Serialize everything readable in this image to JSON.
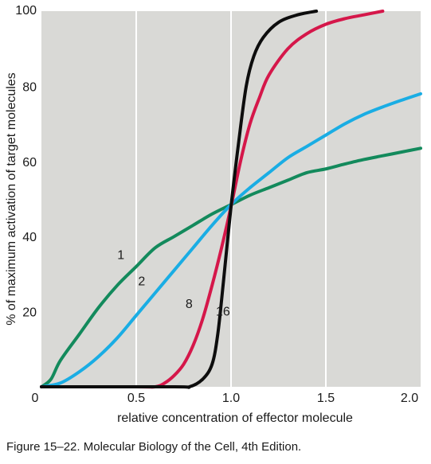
{
  "caption": "Figure 15–22. Molecular Biology of the Cell, 4th Edition.",
  "colors": {
    "plot_background": "#d9d9d6",
    "grid": "#ffffff",
    "n1": "#138a5c",
    "n2": "#1aade4",
    "n8": "#d5174a",
    "n16": "#0d0d0d"
  },
  "chart_data": {
    "type": "line",
    "xlabel": "relative concentration of effector molecule",
    "ylabel": "% of maximum activation of target molecules",
    "xlim": [
      0,
      2.0
    ],
    "ylim": [
      0,
      100
    ],
    "x_ticks": [
      {
        "value": 0,
        "label": "0"
      },
      {
        "value": 0.5,
        "label": "0.5"
      },
      {
        "value": 1.0,
        "label": "1.0"
      },
      {
        "value": 1.5,
        "label": "1.5"
      },
      {
        "value": 2.0,
        "label": "2.0"
      }
    ],
    "y_ticks": [
      {
        "value": 20,
        "label": "20"
      },
      {
        "value": 40,
        "label": "40"
      },
      {
        "value": 60,
        "label": "60"
      },
      {
        "value": 80,
        "label": "80"
      },
      {
        "value": 100,
        "label": "100"
      }
    ],
    "vertical_grid": [
      0.5,
      1.0,
      1.5
    ],
    "series": [
      {
        "name": "1",
        "color_key": "n1",
        "label_at": [
          0.4,
          34
        ],
        "points": [
          [
            0.0,
            0
          ],
          [
            0.05,
            2
          ],
          [
            0.1,
            7
          ],
          [
            0.2,
            14
          ],
          [
            0.3,
            21
          ],
          [
            0.4,
            27
          ],
          [
            0.5,
            32
          ],
          [
            0.6,
            37
          ],
          [
            0.7,
            40
          ],
          [
            0.8,
            43
          ],
          [
            0.9,
            46
          ],
          [
            1.0,
            48.5
          ],
          [
            1.1,
            51
          ],
          [
            1.2,
            53
          ],
          [
            1.3,
            55
          ],
          [
            1.4,
            57
          ],
          [
            1.5,
            58
          ],
          [
            1.6,
            59.3
          ],
          [
            1.7,
            60.5
          ],
          [
            1.8,
            61.5
          ],
          [
            1.9,
            62.5
          ],
          [
            2.0,
            63.5
          ]
        ]
      },
      {
        "name": "2",
        "color_key": "n2",
        "label_at": [
          0.51,
          27
        ],
        "points": [
          [
            0.0,
            0
          ],
          [
            0.1,
            1
          ],
          [
            0.2,
            4
          ],
          [
            0.3,
            8
          ],
          [
            0.4,
            13
          ],
          [
            0.5,
            19
          ],
          [
            0.6,
            25
          ],
          [
            0.7,
            31
          ],
          [
            0.8,
            37
          ],
          [
            0.9,
            43
          ],
          [
            1.0,
            48.5
          ],
          [
            1.1,
            53
          ],
          [
            1.2,
            57
          ],
          [
            1.3,
            61
          ],
          [
            1.4,
            64
          ],
          [
            1.5,
            67
          ],
          [
            1.6,
            70
          ],
          [
            1.7,
            72.5
          ],
          [
            1.8,
            74.5
          ],
          [
            1.9,
            76.3
          ],
          [
            2.0,
            78
          ]
        ]
      },
      {
        "name": "8",
        "color_key": "n8",
        "label_at": [
          0.76,
          21
        ],
        "points": [
          [
            0.0,
            0
          ],
          [
            0.5,
            0
          ],
          [
            0.6,
            0
          ],
          [
            0.65,
            1
          ],
          [
            0.7,
            3
          ],
          [
            0.75,
            6
          ],
          [
            0.8,
            11
          ],
          [
            0.85,
            18
          ],
          [
            0.9,
            27
          ],
          [
            0.95,
            37
          ],
          [
            1.0,
            48
          ],
          [
            1.05,
            60
          ],
          [
            1.1,
            70
          ],
          [
            1.15,
            77
          ],
          [
            1.2,
            83
          ],
          [
            1.3,
            90
          ],
          [
            1.4,
            94
          ],
          [
            1.5,
            96.5
          ],
          [
            1.6,
            98
          ],
          [
            1.7,
            99
          ],
          [
            1.8,
            100
          ]
        ]
      },
      {
        "name": "16",
        "color_key": "n16",
        "label_at": [
          0.92,
          19
        ],
        "points": [
          [
            0.0,
            0
          ],
          [
            0.7,
            0
          ],
          [
            0.78,
            0
          ],
          [
            0.85,
            2
          ],
          [
            0.9,
            6
          ],
          [
            0.93,
            14
          ],
          [
            0.96,
            28
          ],
          [
            1.0,
            48
          ],
          [
            1.04,
            65
          ],
          [
            1.08,
            80
          ],
          [
            1.12,
            88
          ],
          [
            1.17,
            93
          ],
          [
            1.25,
            97
          ],
          [
            1.35,
            99
          ],
          [
            1.45,
            100
          ]
        ]
      }
    ]
  }
}
